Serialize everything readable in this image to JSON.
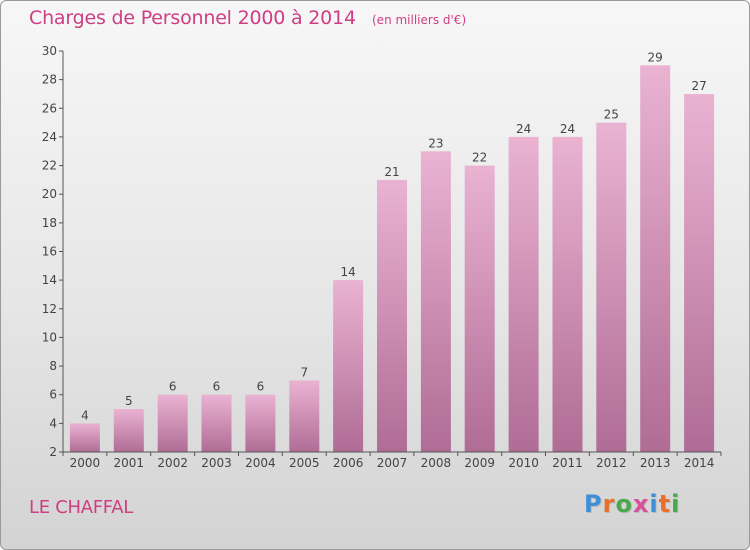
{
  "header": {
    "title": "Charges de Personnel 2000 à 2014",
    "subtitle": "(en milliers d'€)"
  },
  "footer": {
    "commune": "LE CHAFFAL",
    "logo": {
      "letters": [
        "P",
        "r",
        "o",
        "x",
        "i",
        "t",
        "i"
      ],
      "colors": [
        "#3e8fd8",
        "#e8702a",
        "#49a84a",
        "#d94f9c",
        "#3e8fd8",
        "#e8702a",
        "#49a84a"
      ]
    }
  },
  "colors": {
    "bar_top": "#eab3d2",
    "bar_bottom": "#b06c95",
    "accent": "#cf3d84"
  },
  "chart_data": {
    "type": "bar",
    "title": "Charges de Personnel 2000 à 2014",
    "subtitle": "(en milliers d'€)",
    "xlabel": "",
    "ylabel": "",
    "categories": [
      "2000",
      "2001",
      "2002",
      "2003",
      "2004",
      "2005",
      "2006",
      "2007",
      "2008",
      "2009",
      "2010",
      "2011",
      "2012",
      "2013",
      "2014"
    ],
    "values": [
      4,
      5,
      6,
      6,
      6,
      7,
      14,
      21,
      23,
      22,
      24,
      24,
      25,
      29,
      27
    ],
    "ylim": [
      2,
      30
    ],
    "yticks": [
      2,
      4,
      6,
      8,
      10,
      12,
      14,
      16,
      18,
      20,
      22,
      24,
      26,
      28,
      30
    ],
    "grid": false,
    "legend": "none",
    "data_labels": true
  }
}
